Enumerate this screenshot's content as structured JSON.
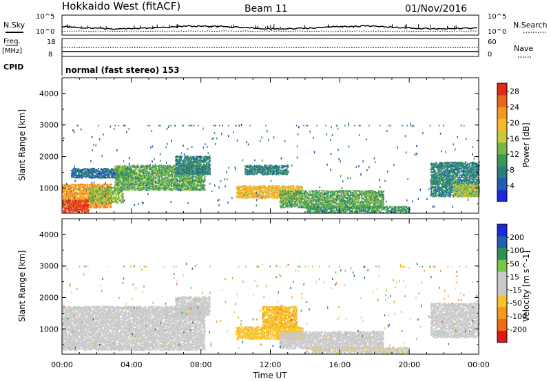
{
  "header": {
    "station": "Hokkaido West (fitACF)",
    "beam": "Beam 11",
    "date": "01/Nov/2016"
  },
  "aux_panels": {
    "nsky_label": "N.Sky",
    "nsky_ticks": [
      "10^5",
      "10^0"
    ],
    "nsearch_label": "N.Search",
    "nsearch_ticks": [
      "10^5",
      "10^0"
    ],
    "freq_label_1": "Freq.",
    "freq_label_2": "[MHz]",
    "freq_ticks": [
      "18",
      "8"
    ],
    "nave_label": "Nave",
    "nave_ticks": [
      "60",
      "0"
    ],
    "cpid_label": "CPID",
    "mode_text": "normal (fast stereo) 153"
  },
  "chart_data": [
    {
      "type": "heatmap",
      "name": "power",
      "ylabel": "Slant Range [km]",
      "xlabel": "",
      "ylim": [
        200,
        4500
      ],
      "xlim": [
        0,
        24
      ],
      "yticks": [
        "4000",
        "3000",
        "2000",
        "1000"
      ],
      "colorbar": {
        "label": "Power [dB]",
        "ticks": [
          "28",
          "24",
          "20",
          "16",
          "12",
          "8",
          "4"
        ],
        "range": [
          0,
          30
        ],
        "colors": [
          "#1d28d8",
          "#1e5fb0",
          "#2c7f78",
          "#3a9a55",
          "#77b64a",
          "#c9c93c",
          "#f5bb2a",
          "#f09a22",
          "#e8651c",
          "#e02a18"
        ]
      },
      "regions": [
        {
          "t0": 0.0,
          "t1": 2.8,
          "r0": 350,
          "r1": 1100,
          "level": 22
        },
        {
          "t0": 0.0,
          "t1": 1.5,
          "r0": 200,
          "r1": 600,
          "level": 28
        },
        {
          "t0": 1.5,
          "t1": 3.5,
          "r0": 500,
          "r1": 1000,
          "level": 14
        },
        {
          "t0": 0.5,
          "t1": 4.0,
          "r0": 1300,
          "r1": 1600,
          "level": 6
        },
        {
          "t0": 3.0,
          "t1": 8.2,
          "r0": 900,
          "r1": 1700,
          "level": 12
        },
        {
          "t0": 6.5,
          "t1": 8.5,
          "r0": 1400,
          "r1": 2000,
          "level": 8
        },
        {
          "t0": 10.0,
          "t1": 13.8,
          "r0": 650,
          "r1": 1050,
          "level": 20
        },
        {
          "t0": 10.5,
          "t1": 13.0,
          "r0": 1400,
          "r1": 1700,
          "level": 8
        },
        {
          "t0": 12.5,
          "t1": 18.5,
          "r0": 350,
          "r1": 900,
          "level": 12
        },
        {
          "t0": 14.0,
          "t1": 20.0,
          "r0": 200,
          "r1": 400,
          "level": 10
        },
        {
          "t0": 21.2,
          "t1": 24.0,
          "r0": 700,
          "r1": 1800,
          "level": 8
        },
        {
          "t0": 22.5,
          "t1": 24.0,
          "r0": 700,
          "r1": 1100,
          "level": 16
        }
      ]
    },
    {
      "type": "heatmap",
      "name": "velocity",
      "ylabel": "Slant Range [km]",
      "xlabel": "Time UT",
      "ylim": [
        200,
        4500
      ],
      "xlim": [
        0,
        24
      ],
      "xticks": [
        "00:00",
        "04:00",
        "08:00",
        "12:00",
        "16:00",
        "20:00",
        "00:00"
      ],
      "yticks": [
        "4000",
        "3000",
        "2000",
        "1000"
      ],
      "colorbar": {
        "label": "Velocity [m s^-1]",
        "ticks": [
          "200",
          "100",
          "50",
          "15",
          "-15",
          "-50",
          "-100",
          "-200"
        ],
        "range": [
          -250,
          250
        ],
        "colors": [
          "#e01818",
          "#f06a14",
          "#f29a1c",
          "#f7c22a",
          "#c9c9c9",
          "#c9c9c9",
          "#78c448",
          "#2f8f5a",
          "#1e5fb0",
          "#1d28d8"
        ]
      },
      "regions": [
        {
          "t0": 0.0,
          "t1": 8.2,
          "r0": 300,
          "r1": 1700,
          "level": 0
        },
        {
          "t0": 6.5,
          "t1": 8.5,
          "r0": 1400,
          "r1": 2000,
          "level": 0
        },
        {
          "t0": 10.0,
          "t1": 13.8,
          "r0": 650,
          "r1": 1050,
          "level": -70
        },
        {
          "t0": 11.5,
          "t1": 13.5,
          "r0": 1000,
          "r1": 1700,
          "level": -90
        },
        {
          "t0": 12.5,
          "t1": 18.5,
          "r0": 350,
          "r1": 900,
          "level": 0
        },
        {
          "t0": 14.0,
          "t1": 20.0,
          "r0": 200,
          "r1": 400,
          "level": -40
        },
        {
          "t0": 21.2,
          "t1": 24.0,
          "r0": 700,
          "r1": 1800,
          "level": 20
        }
      ]
    }
  ]
}
